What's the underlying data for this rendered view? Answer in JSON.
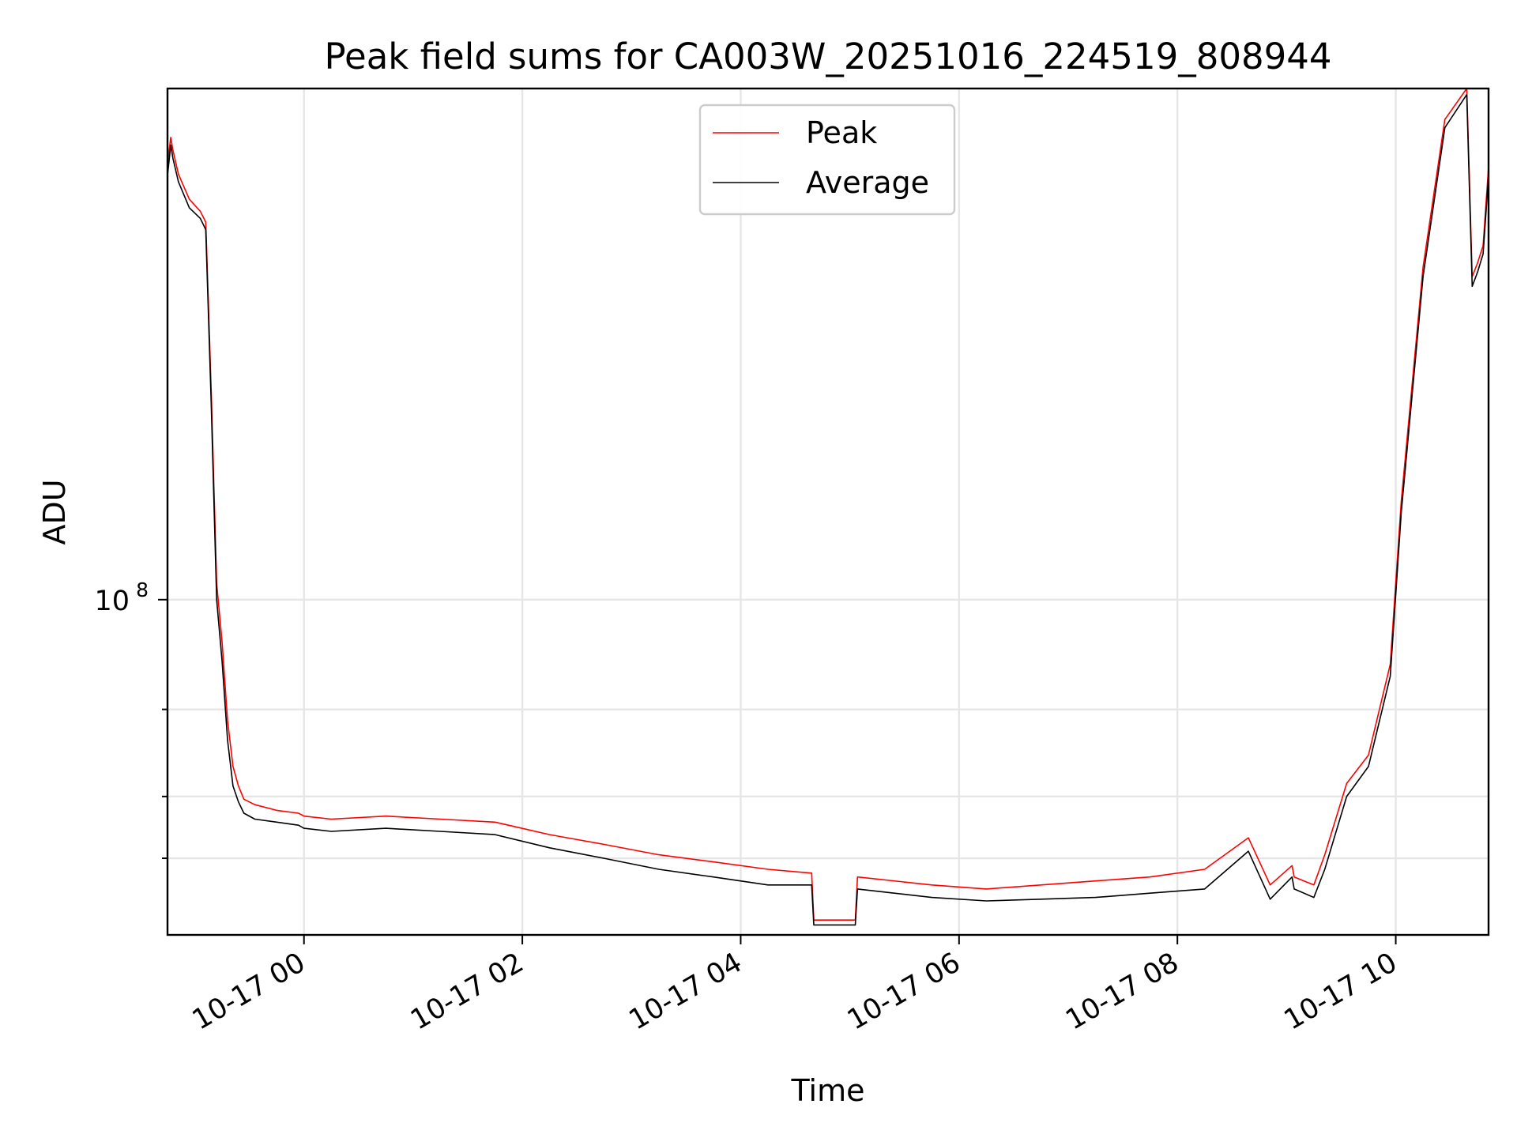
{
  "chart_data": {
    "type": "line",
    "title": "Peak field sums for CA003W_20251016_224519_808944",
    "xlabel": "Time",
    "ylabel": "ADU",
    "y_scale": "log",
    "x_unit": "hours since 10-16 22:45",
    "xlim": [
      0.0,
      12.1
    ],
    "ylim": [
      21000000.0,
      1080000000.0
    ],
    "x_ticks": [
      {
        "value": 1.25,
        "label": "10-17 00"
      },
      {
        "value": 3.25,
        "label": "10-17 02"
      },
      {
        "value": 5.25,
        "label": "10-17 04"
      },
      {
        "value": 7.25,
        "label": "10-17 06"
      },
      {
        "value": 9.25,
        "label": "10-17 08"
      },
      {
        "value": 11.25,
        "label": "10-17 10"
      }
    ],
    "y_major_ticks": [
      {
        "value": 100000000,
        "base": "10",
        "exp": "8"
      }
    ],
    "y_minor_ticks": [
      30000000,
      40000000,
      60000000
    ],
    "legend": {
      "location": "top-center",
      "entries": [
        "Peak",
        "Average"
      ]
    },
    "colors": {
      "peak": "#ff0000",
      "average": "#000000"
    },
    "series": [
      {
        "name": "Average",
        "x": [
          0.0,
          0.03,
          0.05,
          0.1,
          0.2,
          0.3,
          0.35,
          0.4,
          0.45,
          0.5,
          0.55,
          0.6,
          0.65,
          0.7,
          0.8,
          1.0,
          1.2,
          1.25,
          1.5,
          2.0,
          2.5,
          3.0,
          3.5,
          4.0,
          4.5,
          5.0,
          5.5,
          5.9,
          5.92,
          6.3,
          6.32,
          7.0,
          7.5,
          8.0,
          8.5,
          9.0,
          9.5,
          9.9,
          10.1,
          10.3,
          10.32,
          10.5,
          10.6,
          10.8,
          11.0,
          11.2,
          11.3,
          11.5,
          11.7,
          11.9,
          11.95,
          12.0,
          12.05,
          12.1
        ],
        "values": [
          720000000,
          830000000,
          780000000,
          700000000,
          620000000,
          590000000,
          560000000,
          250000000,
          100000000,
          75000000,
          52000000,
          42000000,
          39000000,
          37000000,
          36000000,
          35500000,
          35000000,
          34500000,
          34000000,
          34500000,
          34000000,
          33500000,
          31500000,
          30000000,
          28500000,
          27500000,
          26500000,
          26500000,
          22000000,
          22000000,
          26000000,
          25000000,
          24600000,
          24800000,
          25000000,
          25500000,
          26000000,
          31000000,
          24800000,
          27500000,
          26000000,
          25000000,
          28500000,
          40000000,
          46000000,
          70000000,
          150000000,
          450000000,
          900000000,
          1050000000,
          430000000,
          460000000,
          500000000,
          720000000
        ]
      },
      {
        "name": "Peak",
        "x": [
          0.0,
          0.03,
          0.05,
          0.1,
          0.2,
          0.3,
          0.35,
          0.4,
          0.45,
          0.5,
          0.55,
          0.6,
          0.65,
          0.7,
          0.8,
          1.0,
          1.2,
          1.25,
          1.5,
          2.0,
          2.5,
          3.0,
          3.5,
          4.0,
          4.5,
          5.0,
          5.5,
          5.9,
          5.92,
          6.3,
          6.32,
          7.0,
          7.5,
          8.0,
          8.5,
          9.0,
          9.5,
          9.9,
          10.1,
          10.3,
          10.32,
          10.5,
          10.6,
          10.8,
          11.0,
          11.2,
          11.3,
          11.5,
          11.7,
          11.9,
          11.95,
          12.0,
          12.05,
          12.1
        ],
        "values": [
          760000000,
          860000000,
          810000000,
          725000000,
          645000000,
          610000000,
          580000000,
          265000000,
          108000000,
          82000000,
          57000000,
          46000000,
          42000000,
          39500000,
          38500000,
          37500000,
          37000000,
          36500000,
          36000000,
          36500000,
          36000000,
          35500000,
          33500000,
          32000000,
          30500000,
          29500000,
          28500000,
          28000000,
          22500000,
          22500000,
          27500000,
          26500000,
          26000000,
          26500000,
          27000000,
          27500000,
          28500000,
          33000000,
          26500000,
          29000000,
          27500000,
          26500000,
          30500000,
          42500000,
          48500000,
          74000000,
          158000000,
          470000000,
          935000000,
          1080000000,
          450000000,
          480000000,
          520000000,
          750000000
        ]
      }
    ]
  }
}
